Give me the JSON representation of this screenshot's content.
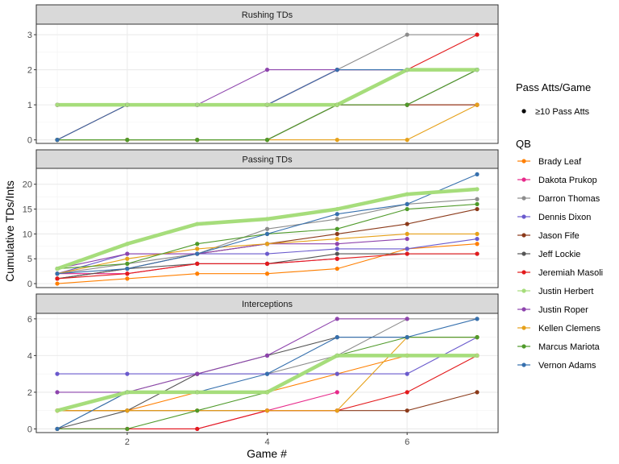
{
  "chart_data": {
    "type": "line",
    "ylabel": "Cumulative TDs/Ints",
    "xlabel": "Game #",
    "x_ticks": [
      2,
      4,
      6
    ],
    "xlim": [
      0.7,
      7.3
    ],
    "grid": true,
    "legend_placement": "right",
    "size_legend": {
      "title": "Pass Atts/Game",
      "entries": [
        "≥10 Pass Atts"
      ]
    },
    "color_legend_title": "QB",
    "series_styles": [
      {
        "name": "Brady Leaf",
        "color": "#FF7F00"
      },
      {
        "name": "Dakota Prukop",
        "color": "#E7298A"
      },
      {
        "name": "Darron Thomas",
        "color": "#8C8C8C"
      },
      {
        "name": "Dennis Dixon",
        "color": "#6A5ACD"
      },
      {
        "name": "Jason Fife",
        "color": "#8B3A1A"
      },
      {
        "name": "Jeff Lockie",
        "color": "#555555"
      },
      {
        "name": "Jeremiah Masoli",
        "color": "#E31A1C"
      },
      {
        "name": "Justin Herbert",
        "color": "#A6DD7B",
        "highlight": true
      },
      {
        "name": "Justin Roper",
        "color": "#8E44AD"
      },
      {
        "name": "Kellen Clemens",
        "color": "#E6A11A"
      },
      {
        "name": "Marcus Mariota",
        "color": "#4F9A2A"
      },
      {
        "name": "Vernon Adams",
        "color": "#3670AE"
      }
    ],
    "panels": [
      {
        "title": "Rushing TDs",
        "ylim": [
          -0.1,
          3.3
        ],
        "y_ticks": [
          0,
          1,
          2,
          3
        ],
        "series": [
          {
            "name": "Brady Leaf",
            "x": [
              1,
              2,
              3,
              4,
              5,
              6,
              7
            ],
            "values": [
              1,
              1,
              1,
              1,
              1,
              1,
              1
            ]
          },
          {
            "name": "Dakota Prukop",
            "x": [
              1,
              2,
              3,
              4,
              5,
              6,
              7
            ],
            "values": [
              1,
              1,
              1,
              1,
              1,
              1,
              1
            ]
          },
          {
            "name": "Darron Thomas",
            "x": [
              1,
              2,
              3,
              4,
              5,
              6,
              7
            ],
            "values": [
              0,
              1,
              1,
              1,
              2,
              3,
              3
            ]
          },
          {
            "name": "Dennis Dixon",
            "x": [
              1,
              2,
              3,
              4,
              5,
              6,
              7
            ],
            "values": [
              1,
              1,
              1,
              1,
              2,
              2,
              2
            ]
          },
          {
            "name": "Jason Fife",
            "x": [
              1,
              2,
              3,
              4,
              5,
              6,
              7
            ],
            "values": [
              0,
              0,
              0,
              0,
              1,
              1,
              1
            ]
          },
          {
            "name": "Jeff Lockie",
            "x": [
              1,
              2,
              3,
              4,
              5,
              6,
              7
            ],
            "values": [
              0,
              0,
              0,
              0,
              1,
              1,
              2
            ]
          },
          {
            "name": "Jeremiah Masoli",
            "x": [
              1,
              2,
              3,
              4,
              5,
              6,
              7
            ],
            "values": [
              0,
              1,
              1,
              1,
              2,
              2,
              3
            ]
          },
          {
            "name": "Justin Herbert",
            "x": [
              1,
              2,
              3,
              4,
              5,
              6,
              7
            ],
            "values": [
              1,
              1,
              1,
              1,
              1,
              2,
              2
            ]
          },
          {
            "name": "Justin Roper",
            "x": [
              1,
              2,
              3,
              4,
              5,
              6,
              7
            ],
            "values": [
              1,
              1,
              1,
              2,
              2,
              2,
              2
            ]
          },
          {
            "name": "Kellen Clemens",
            "x": [
              1,
              2,
              3,
              4,
              5,
              6,
              7
            ],
            "values": [
              0,
              0,
              0,
              0,
              0,
              0,
              1
            ]
          },
          {
            "name": "Marcus Mariota",
            "x": [
              1,
              2,
              3,
              4,
              5,
              6,
              7
            ],
            "values": [
              0,
              0,
              0,
              0,
              1,
              1,
              2
            ]
          },
          {
            "name": "Vernon Adams",
            "x": [
              1,
              2,
              3,
              4,
              5,
              6,
              7
            ],
            "values": [
              0,
              1,
              1,
              1,
              2,
              2,
              2
            ]
          }
        ]
      },
      {
        "title": "Passing TDs",
        "ylim": [
          -0.8,
          23.2
        ],
        "y_ticks": [
          0,
          5,
          10,
          15,
          20
        ],
        "series": [
          {
            "name": "Brady Leaf",
            "x": [
              1,
              2,
              3,
              4,
              5,
              6,
              7
            ],
            "values": [
              0,
              1,
              2,
              2,
              3,
              7,
              8
            ]
          },
          {
            "name": "Dakota Prukop",
            "x": [
              1,
              2,
              3,
              4,
              5
            ],
            "values": [
              2,
              2,
              4,
              4,
              5
            ]
          },
          {
            "name": "Darron Thomas",
            "x": [
              1,
              2,
              3,
              4,
              5,
              6,
              7
            ],
            "values": [
              2,
              4,
              6,
              11,
              13,
              16,
              17
            ]
          },
          {
            "name": "Dennis Dixon",
            "x": [
              1,
              2,
              3,
              4,
              5,
              6,
              7
            ],
            "values": [
              2,
              6,
              6,
              6,
              7,
              7,
              9
            ]
          },
          {
            "name": "Jason Fife",
            "x": [
              1,
              2,
              3,
              4,
              5,
              6,
              7
            ],
            "values": [
              1,
              3,
              6,
              8,
              10,
              12,
              15
            ]
          },
          {
            "name": "Jeff Lockie",
            "x": [
              1,
              2,
              3,
              4,
              5,
              6,
              7
            ],
            "values": [
              1,
              3,
              4,
              4,
              6,
              6,
              6
            ]
          },
          {
            "name": "Jeremiah Masoli",
            "x": [
              1,
              2,
              3,
              4,
              5,
              6,
              7
            ],
            "values": [
              1,
              2,
              4,
              4,
              5,
              6,
              6
            ]
          },
          {
            "name": "Justin Herbert",
            "x": [
              1,
              2,
              3,
              4,
              5,
              6,
              7
            ],
            "values": [
              3,
              8,
              12,
              13,
              15,
              18,
              19
            ]
          },
          {
            "name": "Justin Roper",
            "x": [
              1,
              2,
              3,
              4,
              5,
              6
            ],
            "values": [
              3,
              6,
              6,
              8,
              8,
              9
            ]
          },
          {
            "name": "Kellen Clemens",
            "x": [
              1,
              2,
              3,
              4,
              5,
              6,
              7
            ],
            "values": [
              2,
              5,
              7,
              8,
              9,
              10,
              10
            ]
          },
          {
            "name": "Marcus Mariota",
            "x": [
              1,
              2,
              3,
              4,
              5,
              6,
              7
            ],
            "values": [
              3,
              4,
              8,
              10,
              11,
              15,
              16
            ]
          },
          {
            "name": "Vernon Adams",
            "x": [
              1,
              2,
              3,
              4,
              5,
              6,
              7
            ],
            "values": [
              2,
              3,
              6,
              10,
              14,
              16,
              22
            ]
          }
        ]
      },
      {
        "title": "Interceptions",
        "ylim": [
          -0.2,
          6.3
        ],
        "y_ticks": [
          0,
          2,
          4,
          6
        ],
        "series": [
          {
            "name": "Brady Leaf",
            "x": [
              1,
              2,
              3,
              4,
              5,
              6,
              7
            ],
            "values": [
              1,
              1,
              2,
              2,
              3,
              4,
              4
            ]
          },
          {
            "name": "Dakota Prukop",
            "x": [
              1,
              2,
              3,
              4,
              5
            ],
            "values": [
              0,
              0,
              0,
              1,
              2
            ]
          },
          {
            "name": "Darron Thomas",
            "x": [
              1,
              2,
              3,
              4,
              5,
              6,
              7
            ],
            "values": [
              0,
              2,
              3,
              3,
              4,
              6,
              6
            ]
          },
          {
            "name": "Dennis Dixon",
            "x": [
              1,
              2,
              3,
              4,
              5,
              6,
              7
            ],
            "values": [
              3,
              3,
              3,
              3,
              3,
              3,
              5
            ]
          },
          {
            "name": "Jason Fife",
            "x": [
              1,
              2,
              3,
              4,
              5,
              6,
              7
            ],
            "values": [
              1,
              1,
              1,
              1,
              1,
              1,
              2
            ]
          },
          {
            "name": "Jeff Lockie",
            "x": [
              1,
              2,
              3,
              4,
              5,
              6,
              7
            ],
            "values": [
              0,
              1,
              3,
              4,
              5,
              5,
              5
            ]
          },
          {
            "name": "Jeremiah Masoli",
            "x": [
              1,
              2,
              3,
              4,
              5,
              6,
              7
            ],
            "values": [
              0,
              0,
              0,
              1,
              1,
              2,
              4
            ]
          },
          {
            "name": "Justin Herbert",
            "x": [
              1,
              2,
              3,
              4,
              5,
              6,
              7
            ],
            "values": [
              1,
              2,
              2,
              2,
              4,
              4,
              4
            ]
          },
          {
            "name": "Justin Roper",
            "x": [
              1,
              2,
              3,
              4,
              5,
              6
            ],
            "values": [
              2,
              2,
              3,
              4,
              6,
              6
            ]
          },
          {
            "name": "Kellen Clemens",
            "x": [
              1,
              2,
              3,
              4,
              5,
              6,
              7
            ],
            "values": [
              1,
              1,
              1,
              1,
              1,
              5,
              5
            ]
          },
          {
            "name": "Marcus Mariota",
            "x": [
              1,
              2,
              3,
              4,
              5,
              6,
              7
            ],
            "values": [
              0,
              0,
              1,
              2,
              4,
              5,
              5
            ]
          },
          {
            "name": "Vernon Adams",
            "x": [
              1,
              2,
              3,
              4,
              5,
              6,
              7
            ],
            "values": [
              0,
              2,
              2,
              3,
              5,
              5,
              6
            ]
          }
        ]
      }
    ]
  }
}
